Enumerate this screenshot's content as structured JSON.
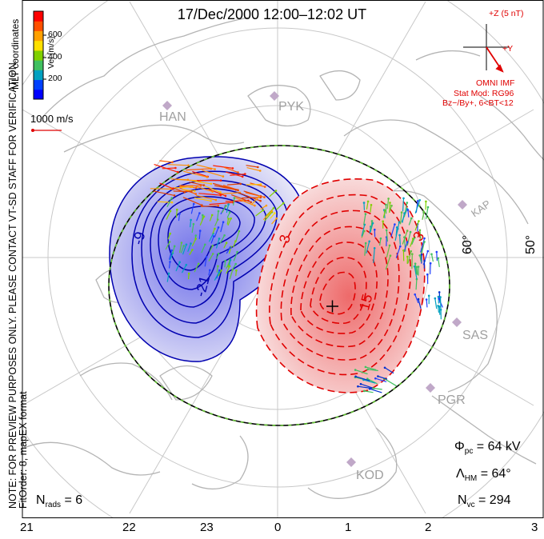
{
  "title": "17/Dec/2000 12:00–12:02 UT",
  "note_lines": [
    "NOTE: FOR PREVIEW PURPOSES ONLY. PLEASE CONTACT VT-SD STAFF FOR VERIFICATION.",
    "FitOrder: 8, mapEX format"
  ],
  "coordinates_label": "MLT coordinates",
  "velocity_scale": {
    "label": "Vel [m/s]",
    "ticks": [
      "600",
      "400",
      "200"
    ],
    "colors": [
      "#0000ff",
      "#0040ff",
      "#00a0c0",
      "#40c060",
      "#80d000",
      "#ffe000",
      "#ffa000",
      "#ff5000",
      "#ff0000"
    ]
  },
  "reference_vector_label": "1000 m/s",
  "imf": {
    "z_label": "+Z (5 nT)",
    "y_label": "+Y",
    "source_label": "OMNI IMF",
    "model_line1": "Stat Mod: RG96",
    "model_line2": "Bz−/By+, 6<BT<12"
  },
  "radars": [
    "HAN",
    "PYK",
    "KAP",
    "SAS",
    "PGR",
    "KOD"
  ],
  "latitude_labels": [
    "60°",
    "50°"
  ],
  "contour_labels": [
    "-9",
    "-21",
    "3",
    "15",
    "3"
  ],
  "stats": {
    "phi_pc": {
      "symbol": "Φ",
      "sub": "pc",
      "value": "= 64 kV"
    },
    "lambda_hm": {
      "symbol": "Λ",
      "sub": "HM",
      "value": "= 64°"
    },
    "n_vc": {
      "symbol": "N",
      "sub": "vc",
      "value": "= 294"
    },
    "n_rads": {
      "symbol": "N",
      "sub": "rads",
      "value": "= 6"
    }
  },
  "mlt_ticks": [
    "21",
    "22",
    "23",
    "0",
    "1",
    "2",
    "3"
  ],
  "colors": {
    "positive": "#e00000",
    "negative": "#0000b0",
    "grid": "#c8c8c8",
    "coast": "#b4b4b4",
    "heppner_maynard_dash": "#60c030"
  }
}
